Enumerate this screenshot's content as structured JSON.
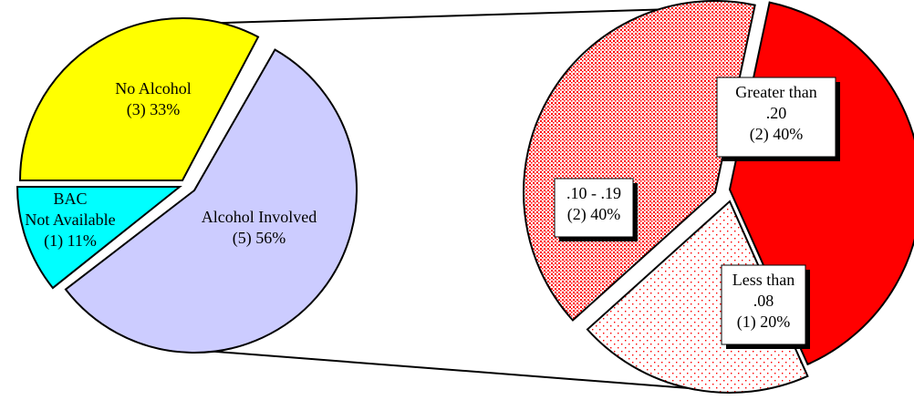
{
  "chart_data": [
    {
      "type": "pie",
      "title": "",
      "slices": [
        {
          "label": "No Alcohol",
          "count": 3,
          "value": 33,
          "text": [
            "No Alcohol",
            "(3) 33%"
          ],
          "color": "#ffff00"
        },
        {
          "label": "BAC Not Available",
          "count": 1,
          "value": 11,
          "text": [
            "BAC",
            "Not Available",
            "(1) 11%"
          ],
          "color": "#00ffff"
        },
        {
          "label": "Alcohol Involved",
          "count": 5,
          "value": 56,
          "text": [
            "Alcohol Involved",
            "(5) 56%"
          ],
          "color": "#ccccff"
        }
      ],
      "exploded": "Alcohol Involved",
      "legend": "none"
    },
    {
      "type": "pie",
      "title": "",
      "breakdown_of": "Alcohol Involved",
      "slices": [
        {
          "label": "Greater than .20",
          "count": 2,
          "value": 40,
          "text": [
            "Greater than",
            ".20",
            "(2) 40%"
          ],
          "color": "#ff0000",
          "pattern": "solid"
        },
        {
          "label": "Less than .08",
          "count": 1,
          "value": 20,
          "text": [
            "Less than",
            ".08",
            "(1) 20%"
          ],
          "color": "#ff0000",
          "pattern": "sparse-dots"
        },
        {
          "label": ".10 - .19",
          "count": 2,
          "value": 40,
          "text": [
            ".10 - .19",
            "(2) 40%"
          ],
          "color": "#ff0000",
          "pattern": "dense-dots"
        }
      ],
      "legend": "none"
    }
  ]
}
